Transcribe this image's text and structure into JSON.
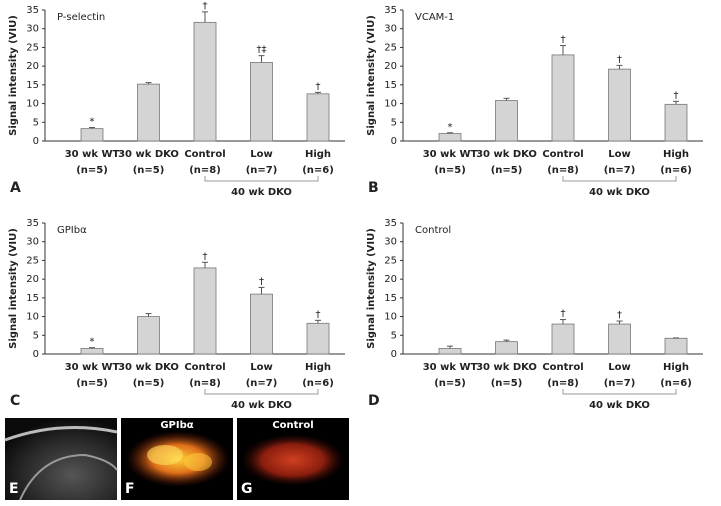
{
  "chart_data": [
    {
      "type": "bar",
      "title": "P-selectin",
      "panel": "A",
      "y_label": "Signal intensity (VIU)",
      "categories": [
        "30 wk WT",
        "30 wk DKO",
        "Control",
        "Low",
        "High"
      ],
      "sample_sizes": [
        "(n=5)",
        "(n=5)",
        "(n=8)",
        "(n=7)",
        "(n=6)"
      ],
      "group_label": "40 wk DKO",
      "values": [
        3.3,
        15.2,
        31.7,
        21,
        12.6
      ],
      "errors": [
        0.3,
        0.4,
        2.8,
        1.8,
        0.4
      ],
      "annotations": [
        "*",
        null,
        "†",
        "†‡",
        "†"
      ],
      "color": "#d4d4d4",
      "ylim": [
        0,
        35
      ],
      "yticks": [
        0,
        5,
        10,
        15,
        20,
        25,
        30,
        35
      ]
    },
    {
      "type": "bar",
      "title": "VCAM-1",
      "panel": "B",
      "y_label": "Signal intensity (VIU)",
      "categories": [
        "30 wk WT",
        "30 wk DKO",
        "Control",
        "Low",
        "High"
      ],
      "sample_sizes": [
        "(n=5)",
        "(n=5)",
        "(n=8)",
        "(n=7)",
        "(n=6)"
      ],
      "group_label": "40 wk DKO",
      "values": [
        2,
        10.8,
        23,
        19.2,
        9.8
      ],
      "errors": [
        0.2,
        0.6,
        2.5,
        1,
        0.8
      ],
      "annotations": [
        "*",
        null,
        "†",
        "†",
        "†"
      ],
      "color": "#d4d4d4",
      "ylim": [
        0,
        35
      ],
      "yticks": [
        0,
        5,
        10,
        15,
        20,
        25,
        30,
        35
      ]
    },
    {
      "type": "bar",
      "title": "GPIbα",
      "panel": "C",
      "y_label": "Signal intensity (VIU)",
      "categories": [
        "30 wk WT",
        "30 wk DKO",
        "Control",
        "Low",
        "High"
      ],
      "sample_sizes": [
        "(n=5)",
        "(n=5)",
        "(n=8)",
        "(n=7)",
        "(n=6)"
      ],
      "group_label": "40 wk DKO",
      "values": [
        1.5,
        10,
        23,
        16,
        8.2
      ],
      "errors": [
        0.2,
        0.8,
        1.5,
        1.8,
        0.8
      ],
      "annotations": [
        "*",
        null,
        "†",
        "†",
        "†"
      ],
      "color": "#d4d4d4",
      "ylim": [
        0,
        35
      ],
      "yticks": [
        0,
        5,
        10,
        15,
        20,
        25,
        30,
        35
      ]
    },
    {
      "type": "bar",
      "title": "Control",
      "panel": "D",
      "y_label": "Signal intensity (VIU)",
      "categories": [
        "30 wk WT",
        "30 wk DKO",
        "Control",
        "Low",
        "High"
      ],
      "sample_sizes": [
        "(n=5)",
        "(n=5)",
        "(n=8)",
        "(n=7)",
        "(n=6)"
      ],
      "group_label": "40 wk DKO",
      "values": [
        1.5,
        3.3,
        8,
        8,
        4.2
      ],
      "errors": [
        0.6,
        0.4,
        1.2,
        0.8,
        0.1
      ],
      "annotations": [
        null,
        null,
        "†",
        "†",
        null
      ],
      "color": "#d4d4d4",
      "ylim": [
        0,
        35
      ],
      "yticks": [
        0,
        5,
        10,
        15,
        20,
        25,
        30,
        35
      ]
    }
  ],
  "images": [
    {
      "panel": "E"
    },
    {
      "panel": "F",
      "caption": "GPIbα"
    },
    {
      "panel": "G",
      "caption": "Control"
    }
  ]
}
